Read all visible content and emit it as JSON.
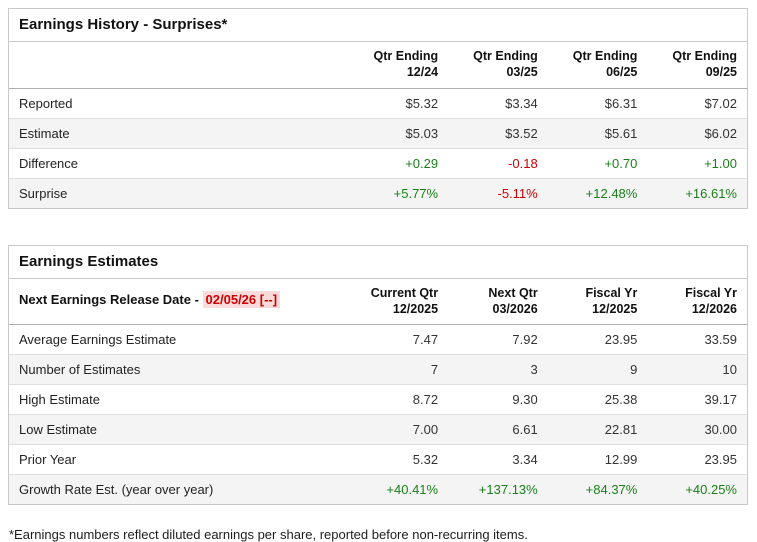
{
  "colors": {
    "positive": "#1a7f1a",
    "negative": "#cc0000",
    "highlight": "#fadbdb"
  },
  "earnings_history": {
    "title": "Earnings History - Surprises*",
    "columns": [
      {
        "line1": "Qtr Ending",
        "line2": "12/24"
      },
      {
        "line1": "Qtr Ending",
        "line2": "03/25"
      },
      {
        "line1": "Qtr Ending",
        "line2": "06/25"
      },
      {
        "line1": "Qtr Ending",
        "line2": "09/25"
      }
    ],
    "rows": [
      {
        "label": "Reported",
        "values": [
          "$5.32",
          "$3.34",
          "$6.31",
          "$7.02"
        ],
        "tones": [
          "neutral",
          "neutral",
          "neutral",
          "neutral"
        ]
      },
      {
        "label": "Estimate",
        "values": [
          "$5.03",
          "$3.52",
          "$5.61",
          "$6.02"
        ],
        "tones": [
          "neutral",
          "neutral",
          "neutral",
          "neutral"
        ]
      },
      {
        "label": "Difference",
        "values": [
          "+0.29",
          "-0.18",
          "+0.70",
          "+1.00"
        ],
        "tones": [
          "positive",
          "negative",
          "positive",
          "positive"
        ]
      },
      {
        "label": "Surprise",
        "values": [
          "+5.77%",
          "-5.11%",
          "+12.48%",
          "+16.61%"
        ],
        "tones": [
          "positive",
          "negative",
          "positive",
          "positive"
        ]
      }
    ]
  },
  "earnings_estimates": {
    "title": "Earnings Estimates",
    "release_label": "Next Earnings Release Date - ",
    "release_date": "02/05/26 [--]",
    "columns": [
      {
        "line1": "Current Qtr",
        "line2": "12/2025"
      },
      {
        "line1": "Next Qtr",
        "line2": "03/2026"
      },
      {
        "line1": "Fiscal Yr",
        "line2": "12/2025"
      },
      {
        "line1": "Fiscal Yr",
        "line2": "12/2026"
      }
    ],
    "rows": [
      {
        "label": "Average Earnings Estimate",
        "values": [
          "7.47",
          "7.92",
          "23.95",
          "33.59"
        ],
        "tones": [
          "neutral",
          "neutral",
          "neutral",
          "neutral"
        ]
      },
      {
        "label": "Number of Estimates",
        "values": [
          "7",
          "3",
          "9",
          "10"
        ],
        "tones": [
          "neutral",
          "neutral",
          "neutral",
          "neutral"
        ]
      },
      {
        "label": "High Estimate",
        "values": [
          "8.72",
          "9.30",
          "25.38",
          "39.17"
        ],
        "tones": [
          "neutral",
          "neutral",
          "neutral",
          "neutral"
        ]
      },
      {
        "label": "Low Estimate",
        "values": [
          "7.00",
          "6.61",
          "22.81",
          "30.00"
        ],
        "tones": [
          "neutral",
          "neutral",
          "neutral",
          "neutral"
        ]
      },
      {
        "label": "Prior Year",
        "values": [
          "5.32",
          "3.34",
          "12.99",
          "23.95"
        ],
        "tones": [
          "neutral",
          "neutral",
          "neutral",
          "neutral"
        ]
      },
      {
        "label": "Growth Rate Est. (year over year)",
        "values": [
          "+40.41%",
          "+137.13%",
          "+84.37%",
          "+40.25%"
        ],
        "tones": [
          "positive",
          "positive",
          "positive",
          "positive"
        ]
      }
    ]
  },
  "footnote": "*Earnings numbers reflect diluted earnings per share, reported before non-recurring items."
}
